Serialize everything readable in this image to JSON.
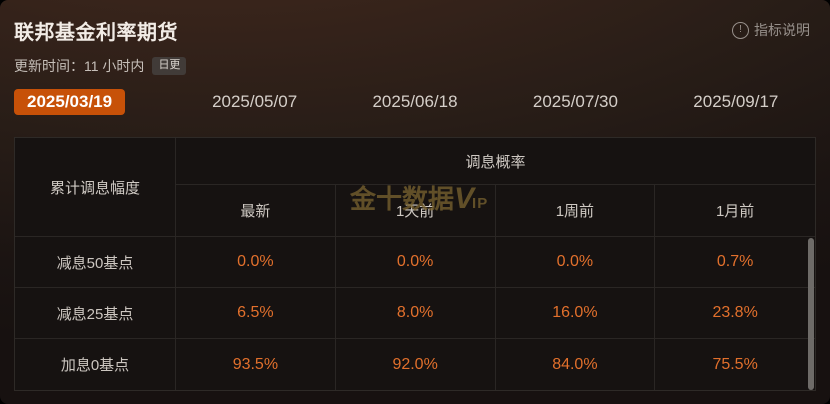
{
  "header": {
    "title": "联邦基金利率期货",
    "help_label": "指标说明",
    "help_icon_glyph": "!"
  },
  "update": {
    "time_label": "更新时间：11 小时内",
    "badge": "日更"
  },
  "tabs": [
    {
      "label": "2025/03/19",
      "active": true
    },
    {
      "label": "2025/05/07",
      "active": false
    },
    {
      "label": "2025/06/18",
      "active": false
    },
    {
      "label": "2025/07/30",
      "active": false
    },
    {
      "label": "2025/09/17",
      "active": false
    }
  ],
  "table": {
    "corner_header": "累计调息幅度",
    "group_header": "调息概率",
    "sub_headers": [
      "最新",
      "1天前",
      "1周前",
      "1月前"
    ],
    "rows": [
      {
        "label": "减息50基点",
        "values": [
          "0.0%",
          "0.0%",
          "0.0%",
          "0.7%"
        ]
      },
      {
        "label": "减息25基点",
        "values": [
          "6.5%",
          "8.0%",
          "16.0%",
          "23.8%"
        ]
      },
      {
        "label": "加息0基点",
        "values": [
          "93.5%",
          "92.0%",
          "84.0%",
          "75.5%"
        ]
      }
    ]
  },
  "watermark": {
    "brand": "金十数据",
    "v": "V",
    "ip": "IP"
  },
  "colors": {
    "accent_orange": "#c75108",
    "value_orange": "#e2702c",
    "background_brown": "#38241b",
    "table_background": "#161211",
    "watermark_gold": "#7a6430"
  }
}
